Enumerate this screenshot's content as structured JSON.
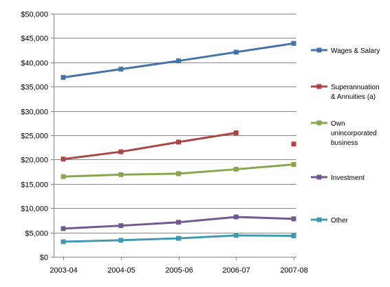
{
  "chart_data": {
    "type": "line",
    "title": "",
    "xlabel": "",
    "ylabel": "",
    "categories": [
      "2003-04",
      "2004-05",
      "2005-06",
      "2006-07",
      "2007-08"
    ],
    "ylim": [
      0,
      50000
    ],
    "yticks": [
      0,
      5000,
      10000,
      15000,
      20000,
      25000,
      30000,
      35000,
      40000,
      45000,
      50000
    ],
    "ytick_labels": [
      "$0",
      "$5,000",
      "$10,000",
      "$15,000",
      "$20,000",
      "$25,000",
      "$30,000",
      "$35,000",
      "$40,000",
      "$45,000",
      "$50,000"
    ],
    "grid": "horizontal",
    "legend_position": "right",
    "series": [
      {
        "name": "Wages & Salary",
        "legend_lines": [
          "Wages & Salary"
        ],
        "color": "#4572A7",
        "values": [
          36900,
          38600,
          40300,
          42100,
          43900
        ],
        "connected": [
          true,
          true,
          true,
          true,
          true
        ]
      },
      {
        "name": "Superannuation & Annuities (a)",
        "legend_lines": [
          "Superannuation",
          "& Annuities (a)"
        ],
        "color": "#AA4643",
        "values": [
          20100,
          21600,
          23600,
          25500,
          23200
        ],
        "connected": [
          true,
          true,
          true,
          true,
          false
        ]
      },
      {
        "name": "Own unincorporated business",
        "legend_lines": [
          "Own",
          "unincorporated",
          "business"
        ],
        "color": "#89A54E",
        "values": [
          16500,
          16900,
          17100,
          18000,
          19000
        ],
        "connected": [
          true,
          true,
          true,
          true,
          true
        ]
      },
      {
        "name": "Investment",
        "legend_lines": [
          "Investment"
        ],
        "color": "#71588F",
        "values": [
          5800,
          6400,
          7100,
          8200,
          7800
        ],
        "connected": [
          true,
          true,
          true,
          true,
          true
        ]
      },
      {
        "name": "Other",
        "legend_lines": [
          "Other"
        ],
        "color": "#4198AF",
        "values": [
          3100,
          3400,
          3800,
          4400,
          4300
        ],
        "connected": [
          true,
          true,
          true,
          true,
          true
        ]
      }
    ]
  }
}
